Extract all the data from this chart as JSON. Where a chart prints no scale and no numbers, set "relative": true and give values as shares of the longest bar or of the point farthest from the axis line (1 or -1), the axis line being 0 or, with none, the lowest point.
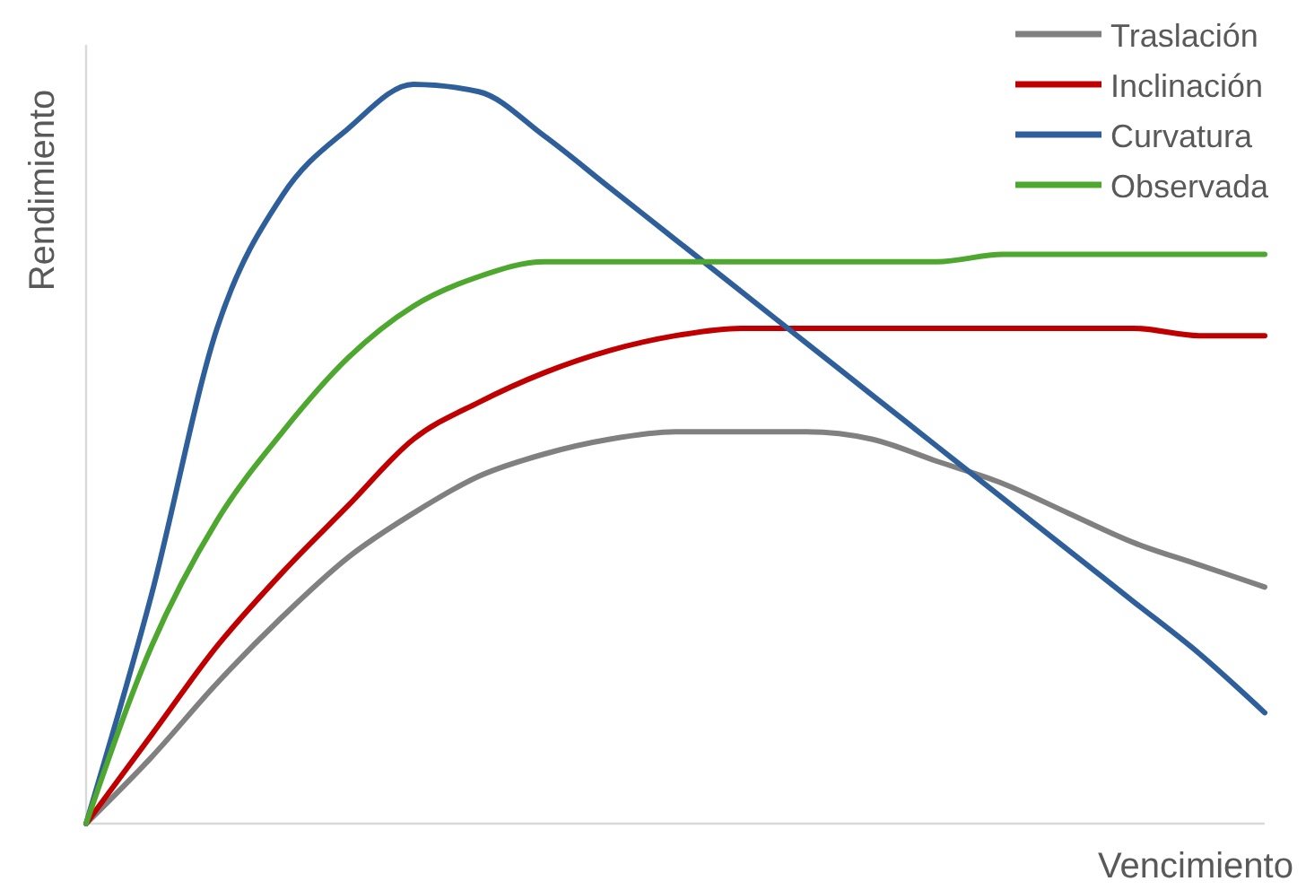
{
  "chart_data": {
    "type": "line",
    "relative": true,
    "xlabel": "Vencimiento",
    "ylabel": "Rendimiento",
    "legend": "top right",
    "marker": "none",
    "line_style": "solid",
    "categories": [
      null,
      null,
      null,
      null,
      null,
      null,
      null,
      null,
      null,
      null,
      null,
      null,
      null,
      null,
      null,
      null,
      null,
      null,
      null
    ],
    "series": [
      {
        "name": "Traslación",
        "color": "#808080",
        "values": [
          0,
          0.09,
          0.19,
          0.28,
          0.36,
          0.42,
          0.47,
          0.5,
          0.52,
          0.53,
          0.53,
          0.53,
          0.52,
          0.49,
          0.46,
          0.42,
          0.38,
          0.35,
          0.32
        ]
      },
      {
        "name": "Inclinación",
        "color": "#c00000",
        "values": [
          0,
          0.12,
          0.24,
          0.34,
          0.43,
          0.52,
          0.57,
          0.61,
          0.64,
          0.66,
          0.67,
          0.67,
          0.67,
          0.67,
          0.67,
          0.67,
          0.67,
          0.66,
          0.66
        ]
      },
      {
        "name": "Curvatura",
        "color": "#2e5f9a",
        "values": [
          0,
          0.31,
          0.67,
          0.85,
          0.94,
          1,
          0.99,
          0.93,
          0.86,
          0.79,
          0.72,
          0.65,
          0.58,
          0.51,
          0.44,
          0.37,
          0.3,
          0.23,
          0.15
        ]
      },
      {
        "name": "Observada",
        "color": "#4ea72e",
        "values": [
          0,
          0.24,
          0.41,
          0.53,
          0.63,
          0.7,
          0.74,
          0.76,
          0.76,
          0.76,
          0.76,
          0.76,
          0.76,
          0.76,
          0.77,
          0.77,
          0.77,
          0.77,
          0.77
        ]
      }
    ]
  }
}
